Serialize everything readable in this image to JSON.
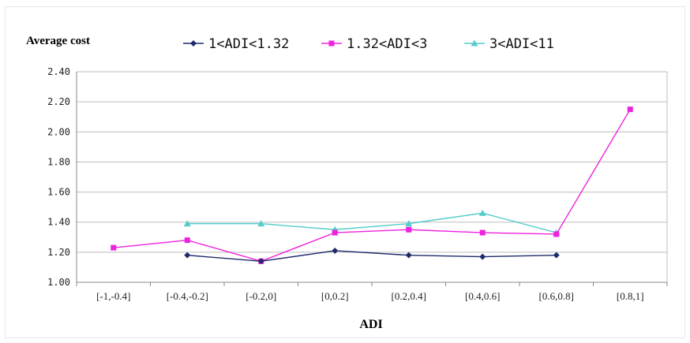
{
  "chart_data": {
    "type": "line",
    "ylabel": "Average cost",
    "xlabel": "ADI",
    "categories": [
      "[-1,-0.4]",
      "[-0.4,-0.2]",
      "[-0.2,0]",
      "[0,0.2]",
      "[0.2,0.4]",
      "[0.4,0.6]",
      "[0.6,0.8]",
      "[0.8,1]"
    ],
    "ylim": [
      1.0,
      2.4
    ],
    "yticks": [
      "1.00",
      "1.20",
      "1.40",
      "1.60",
      "1.80",
      "2.00",
      "2.20",
      "2.40"
    ],
    "grid": true,
    "legend_position": "top",
    "series": [
      {
        "name": "1<ADI<1.32",
        "color": "#1f2a6b",
        "marker": "diamond",
        "values": [
          null,
          1.18,
          1.14,
          1.21,
          1.18,
          1.17,
          1.18,
          null
        ]
      },
      {
        "name": "1.32<ADI<3",
        "color": "#ee22dd",
        "marker": "square",
        "values": [
          1.23,
          1.28,
          1.14,
          1.33,
          1.35,
          1.33,
          1.32,
          2.15
        ]
      },
      {
        "name": "3<ADI<11",
        "color": "#55cccc",
        "marker": "triangle",
        "values": [
          null,
          1.39,
          1.39,
          1.35,
          1.39,
          1.46,
          1.33,
          null
        ]
      }
    ]
  }
}
